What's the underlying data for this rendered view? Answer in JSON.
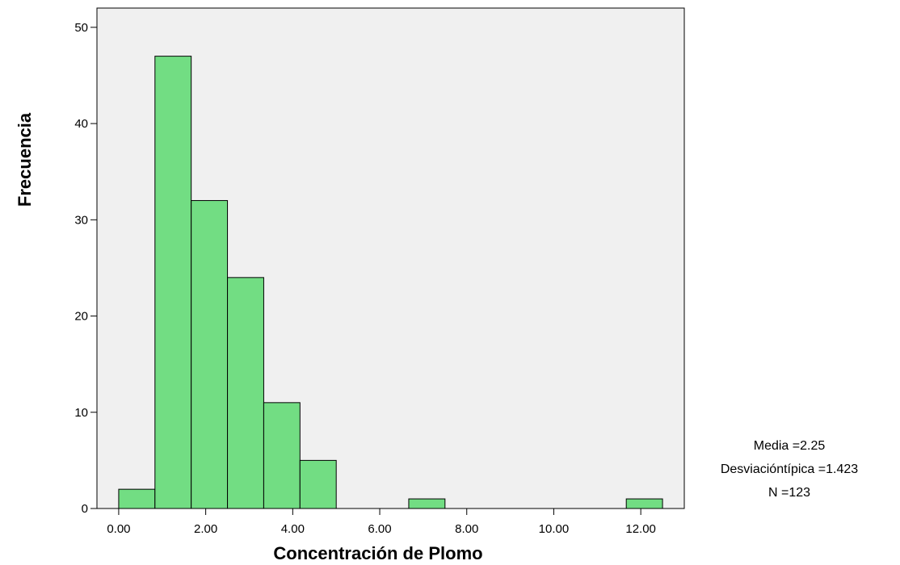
{
  "chart_data": {
    "type": "bar",
    "title": "",
    "xlabel": "Concentración de Plomo",
    "ylabel": "Frecuencia",
    "bin_edges": [
      0.0,
      0.8333,
      1.6667,
      2.5,
      3.3333,
      4.1667,
      5.0,
      5.8333,
      6.6667,
      7.5,
      8.3333,
      9.1667,
      10.0,
      10.8333,
      11.6667,
      12.5
    ],
    "values": [
      2,
      47,
      32,
      24,
      11,
      5,
      0,
      0,
      1,
      0,
      0,
      0,
      0,
      0,
      1
    ],
    "bar_color": "#72dd83",
    "plot_background": "#f0f0f0",
    "xlim": [
      -0.5,
      13.0
    ],
    "ylim": [
      0,
      52
    ],
    "xticks": [
      {
        "value": 0,
        "label": "0.00"
      },
      {
        "value": 2,
        "label": "2.00"
      },
      {
        "value": 4,
        "label": "4.00"
      },
      {
        "value": 6,
        "label": "6.00"
      },
      {
        "value": 8,
        "label": "8.00"
      },
      {
        "value": 10,
        "label": "10.00"
      },
      {
        "value": 12,
        "label": "12.00"
      }
    ],
    "yticks": [
      {
        "value": 0,
        "label": "0"
      },
      {
        "value": 10,
        "label": "10"
      },
      {
        "value": 20,
        "label": "20"
      },
      {
        "value": 30,
        "label": "30"
      },
      {
        "value": 40,
        "label": "40"
      },
      {
        "value": 50,
        "label": "50"
      }
    ],
    "grid": false,
    "stats": {
      "mean_label": "Media =2.25",
      "std_label": "Desviacióntípica =1.423",
      "n_label": "N =123"
    }
  }
}
